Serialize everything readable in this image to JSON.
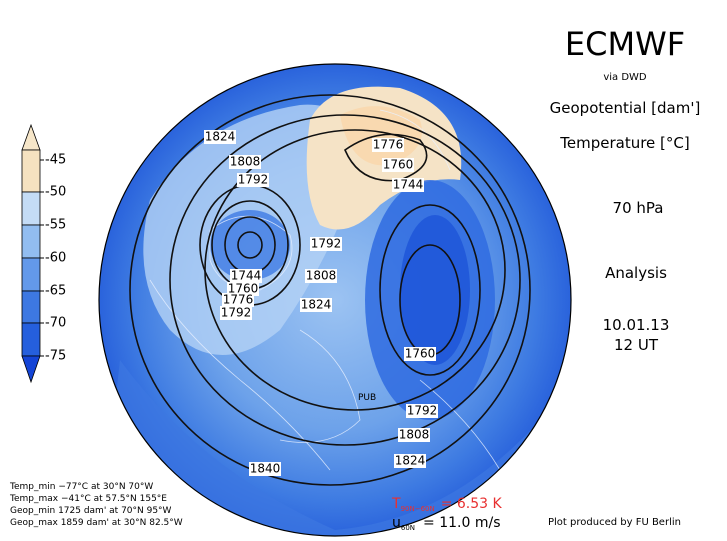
{
  "header": {
    "title": "ECMWF",
    "source": "via DWD",
    "variable_1": "Geopotential [dam']",
    "variable_2": "Temperature [°C]",
    "level": "70 hPa",
    "product": "Analysis",
    "date": "10.01.13",
    "time": "12 UT"
  },
  "colorbar": {
    "ticks": [
      -45,
      -50,
      -55,
      -60,
      -65,
      -70,
      -75
    ]
  },
  "contour_labels": [
    1824,
    1808,
    1792,
    1776,
    1760,
    1744,
    1792,
    1808,
    1824,
    1744,
    1760,
    1776,
    1792,
    1760,
    1792,
    1808,
    1824,
    1840
  ],
  "stats": [
    "Temp_min −77°C at 30°N 70°W",
    "Temp_max −41°C at 57.5°N 155°E",
    "Geop_min 1725 dam' at 70°N 95°W",
    "Geop_max 1859 dam' at 30°N 82.5°W"
  ],
  "indices": {
    "t_symbol": "T",
    "t_sub": "90N−60N",
    "t_value": "= 6.53 K",
    "u_symbol": "u",
    "u_sub": "60N",
    "u_value": "= 11.0 m/s"
  },
  "credit": "Plot produced by FU Berlin",
  "station": "PUB"
}
